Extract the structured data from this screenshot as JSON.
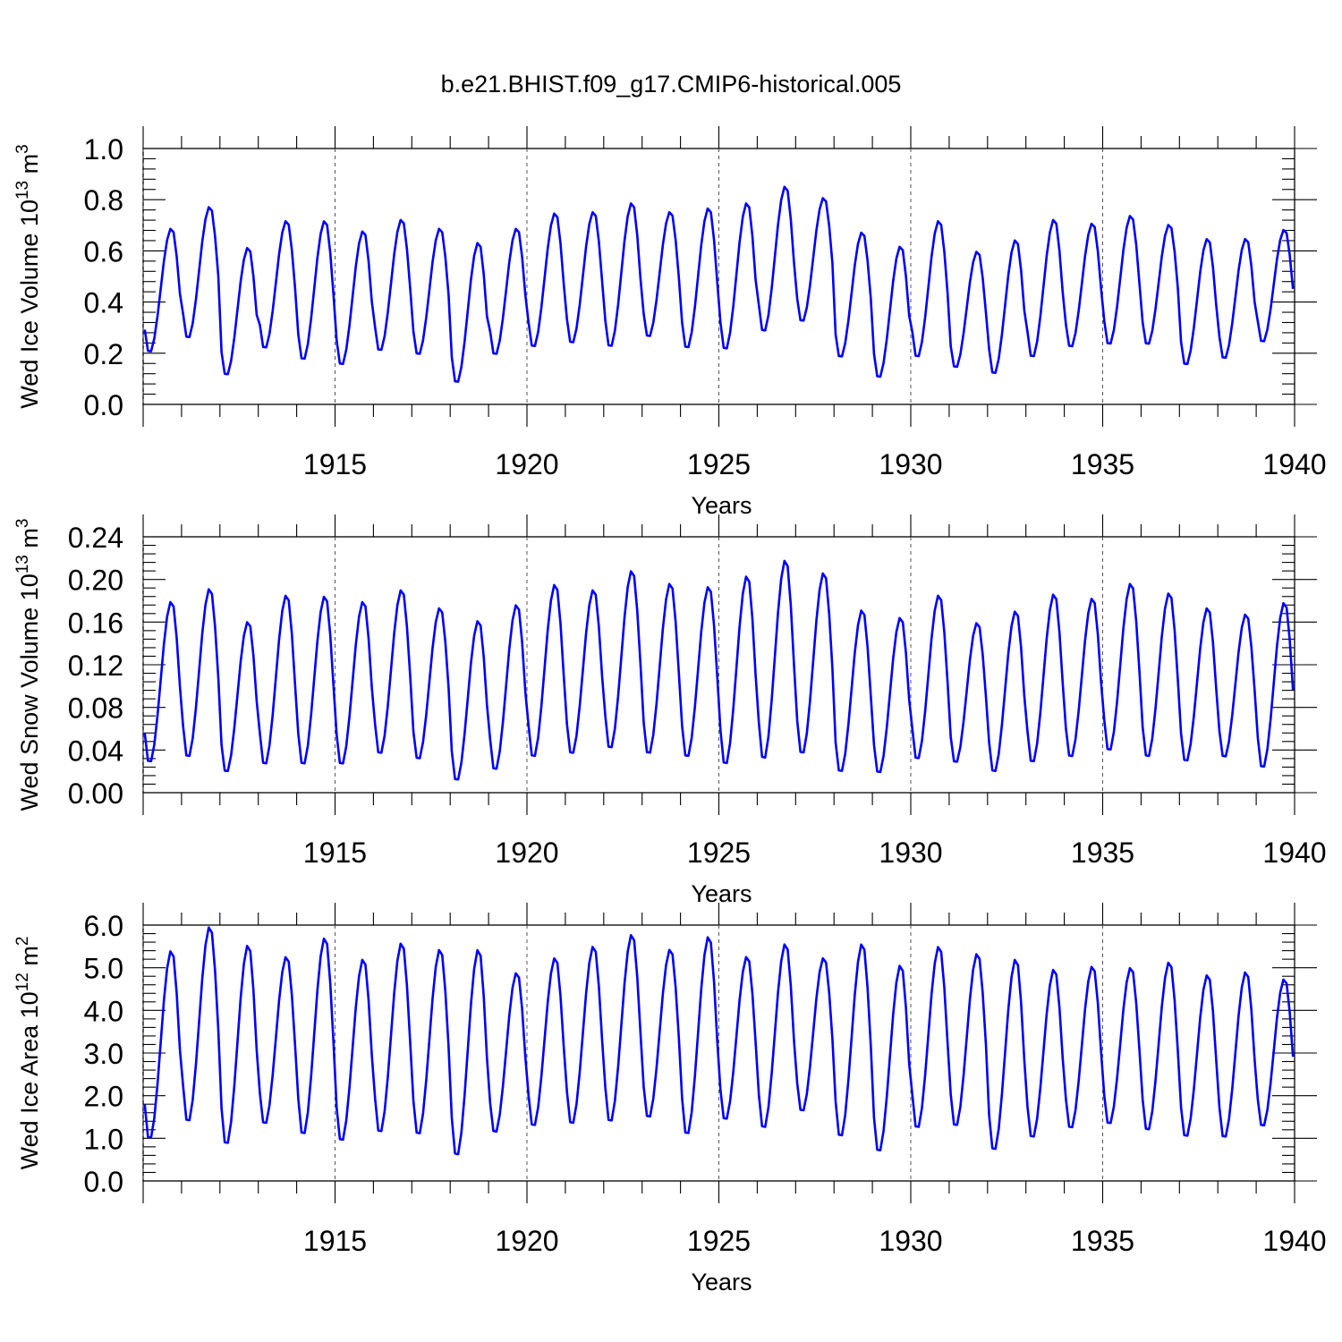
{
  "title": "b.e21.BHIST.f09_g17.CMIP6-historical.005",
  "colors": {
    "series": "#0000ff",
    "axis": "#000000",
    "grid": "#555555"
  },
  "chart_data": [
    {
      "type": "line",
      "title": "b.e21.BHIST.f09_g17.CMIP6-historical.005",
      "xlabel": "Years",
      "ylabel": "Wed Ice Volume",
      "ylabel_unit": "10",
      "ylabel_unit_exp": "13",
      "ylabel_unit2": " m",
      "ylabel_unit2_exp": "3",
      "xlim": [
        1910.0,
        1940.0
      ],
      "ylim": [
        0.0,
        1.0
      ],
      "xticks": [
        "1915",
        "1920",
        "1925",
        "1930",
        "1935",
        "1940"
      ],
      "yticks": [
        "0.0",
        "0.2",
        "0.4",
        "0.6",
        "0.8",
        "1.0"
      ],
      "grid": "vertical dashed at major x ticks",
      "yearly_min": [
        0.2,
        0.255,
        0.11,
        0.215,
        0.17,
        0.15,
        0.205,
        0.19,
        0.08,
        0.19,
        0.22,
        0.235,
        0.22,
        0.26,
        0.215,
        0.21,
        0.28,
        0.32,
        0.18,
        0.1,
        0.18,
        0.14,
        0.115,
        0.18,
        0.22,
        0.23,
        0.23,
        0.15,
        0.175,
        0.24
      ],
      "yearly_max": [
        0.69,
        0.775,
        0.615,
        0.72,
        0.72,
        0.68,
        0.725,
        0.69,
        0.635,
        0.69,
        0.75,
        0.755,
        0.79,
        0.755,
        0.77,
        0.79,
        0.855,
        0.81,
        0.675,
        0.62,
        0.72,
        0.6,
        0.645,
        0.725,
        0.71,
        0.74,
        0.705,
        0.65,
        0.65,
        0.685
      ]
    },
    {
      "type": "line",
      "xlabel": "Years",
      "ylabel": "Wed Snow Volume",
      "ylabel_unit": "10",
      "ylabel_unit_exp": "13",
      "ylabel_unit2": " m",
      "ylabel_unit2_exp": "3",
      "xlim": [
        1910.0,
        1940.0
      ],
      "ylim": [
        0.0,
        0.24
      ],
      "xticks": [
        "1915",
        "1920",
        "1925",
        "1930",
        "1935",
        "1940"
      ],
      "yticks": [
        "0.00",
        "0.04",
        "0.08",
        "0.12",
        "0.16",
        "0.20",
        "0.24"
      ],
      "grid": "vertical dashed at major x ticks",
      "yearly_min": [
        0.027,
        0.032,
        0.018,
        0.025,
        0.025,
        0.025,
        0.035,
        0.03,
        0.01,
        0.02,
        0.032,
        0.035,
        0.04,
        0.035,
        0.032,
        0.025,
        0.03,
        0.035,
        0.018,
        0.017,
        0.03,
        0.027,
        0.018,
        0.027,
        0.032,
        0.038,
        0.032,
        0.028,
        0.032,
        0.022
      ],
      "yearly_max": [
        0.18,
        0.192,
        0.161,
        0.186,
        0.185,
        0.18,
        0.191,
        0.174,
        0.162,
        0.177,
        0.196,
        0.191,
        0.209,
        0.197,
        0.194,
        0.204,
        0.219,
        0.207,
        0.172,
        0.165,
        0.186,
        0.16,
        0.171,
        0.187,
        0.183,
        0.197,
        0.188,
        0.174,
        0.168,
        0.179
      ]
    },
    {
      "type": "line",
      "xlabel": "Years",
      "ylabel": "Wed Ice Area",
      "ylabel_unit": "10",
      "ylabel_unit_exp": "12",
      "ylabel_unit2": " m",
      "ylabel_unit2_exp": "2",
      "xlim": [
        1910.0,
        1940.0
      ],
      "ylim": [
        0.0,
        6.0
      ],
      "xticks": [
        "1915",
        "1920",
        "1925",
        "1930",
        "1935",
        "1940"
      ],
      "yticks": [
        "0.0",
        "1.0",
        "2.0",
        "3.0",
        "4.0",
        "5.0",
        "6.0"
      ],
      "grid": "vertical dashed at major x ticks",
      "yearly_min": [
        0.95,
        1.35,
        0.82,
        1.3,
        1.05,
        0.9,
        1.1,
        1.05,
        0.55,
        1.1,
        1.25,
        1.3,
        1.35,
        1.45,
        1.05,
        1.4,
        1.2,
        1.6,
        1.0,
        0.65,
        1.2,
        1.25,
        0.68,
        0.98,
        1.2,
        1.3,
        1.15,
        1.0,
        0.98,
        1.25
      ],
      "yearly_max": [
        5.42,
        5.98,
        5.55,
        5.28,
        5.72,
        5.22,
        5.6,
        5.45,
        5.45,
        4.9,
        5.25,
        5.52,
        5.8,
        5.45,
        5.75,
        5.28,
        5.58,
        5.25,
        5.58,
        5.08,
        5.52,
        5.35,
        5.22,
        4.98,
        5.05,
        5.02,
        5.15,
        4.85,
        4.92,
        4.75
      ]
    }
  ]
}
